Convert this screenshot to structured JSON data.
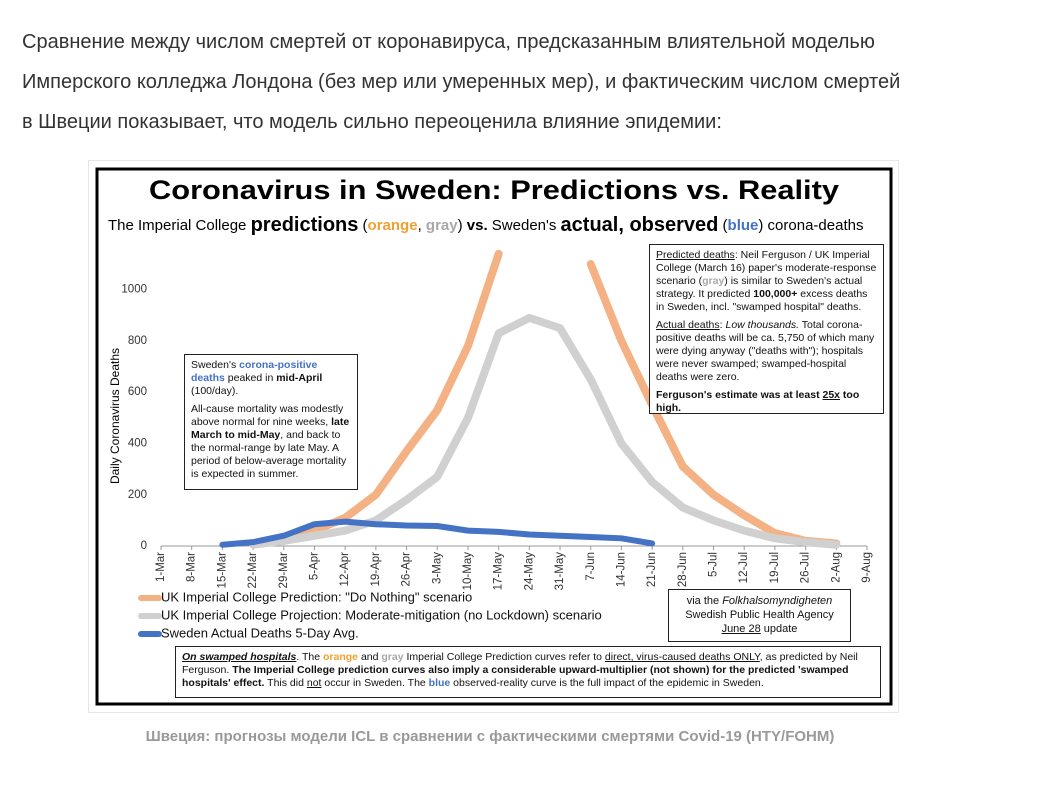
{
  "article": {
    "paragraph_lines": [
      "Сравнение между числом смертей от коронавируса, предсказанным влиятельной моделью",
      "Имперского колледжа Лондона (без мер или умеренных мер), и фактическим числом смертей",
      "в Швеции показывает, что модель сильно переоценила влияние эпидемии:"
    ],
    "caption": "Швеция: прогнозы модели ICL в сравнении с фактическими смертями Covid-19 (HTY/FOHM)"
  },
  "chart_data": {
    "type": "line",
    "title": "Coronavirus in Sweden: Predictions vs. Reality",
    "subtitle": [
      "The Imperial College ",
      "predictions",
      " (",
      "orange",
      ", ",
      "gray",
      ") ",
      "vs.",
      " Sweden's ",
      "actual, observed",
      " (",
      "blue",
      ") corona-deaths"
    ],
    "y_label": "Daily  Coronavirus Deaths",
    "categories": [
      "1-Mar",
      "8-Mar",
      "15-Mar",
      "22-Mar",
      "29-Mar",
      "5-Apr",
      "12-Apr",
      "19-Apr",
      "26-Apr",
      "3-May",
      "10-May",
      "17-May",
      "24-May",
      "31-May",
      "7-Jun",
      "14-Jun",
      "21-Jun",
      "28-Jun",
      "5-Jul",
      "12-Jul",
      "19-Jul",
      "26-Jul",
      "2-Aug",
      "9-Aug"
    ],
    "series": [
      {
        "name": "UK Imperial College Prediction: \"Do Nothing\" scenario",
        "color": "#f4b183",
        "values": [
          null,
          null,
          null,
          null,
          20,
          60,
          110,
          200,
          370,
          530,
          780,
          1140,
          null,
          null,
          1100,
          800,
          550,
          310,
          200,
          120,
          50,
          20,
          10,
          null
        ]
      },
      {
        "name": "UK Imperial College Projection: Moderate-mitigation (no Lockdown) scenario",
        "color": "#d0d0d0",
        "values": [
          null,
          null,
          null,
          5,
          20,
          40,
          60,
          100,
          180,
          270,
          500,
          830,
          890,
          850,
          650,
          400,
          250,
          150,
          100,
          60,
          30,
          15,
          5,
          null
        ]
      },
      {
        "name": "Sweden Actual Deaths 5-Day Avg.",
        "color": "#4472c4",
        "values": [
          null,
          null,
          5,
          15,
          40,
          85,
          95,
          85,
          80,
          78,
          60,
          55,
          45,
          40,
          35,
          30,
          10,
          null,
          null,
          null,
          null,
          null,
          null,
          null
        ]
      }
    ],
    "ylim": [
      0,
      1190
    ],
    "yticks": [
      0,
      200,
      400,
      600,
      800,
      1000
    ],
    "grid": false,
    "left_note": {
      "p1": [
        "Sweden's ",
        "corona-positive deaths",
        " peaked in ",
        "mid-April",
        " (100/day)."
      ],
      "p2": [
        "All-cause mortality was modestly above normal for nine weeks, ",
        "late March to mid-May",
        ", and back to the normal-range by late May. A period of below-average mortality is expected in summer."
      ]
    },
    "right_note": {
      "p1": [
        "Predicted deaths",
        ": Neil Ferguson / UK Imperial College (March 16) paper's moderate-response scenario (",
        "gray",
        ") is similar to Sweden's actual strategy. It predicted ",
        "100,000+",
        " excess deaths in Sweden, incl. \"swamped hospital\" deaths."
      ],
      "p2": [
        "Actual deaths",
        ": ",
        "Low thousands.",
        " Total corona-positive deaths will be ca. 5,750 of which many were dying anyway (\"deaths with\"); hospitals were never swamped; swamped-hospital deaths were zero."
      ],
      "p3": [
        "Ferguson's estimate was at least ",
        "25x",
        " too high."
      ]
    },
    "source_note": {
      "line1": [
        "via the ",
        "Folkhalsomyndigheten"
      ],
      "line2": "Swedish Public Health Agency",
      "line3": [
        "June 28",
        " update"
      ]
    },
    "bottom_note": [
      "On swamped hospitals",
      ". The ",
      "orange",
      " and ",
      "gray",
      " Imperial College Prediction curves refer to ",
      "direct, virus-caused deaths ONLY",
      ", as predicted by Neil Ferguson. ",
      "The Imperial College prediction curves also imply a considerable upward-multiplier (not shown) for the predicted 'swamped hospitals' effect.",
      " This did ",
      "not",
      " occur in Sweden. The ",
      "blue",
      " observed-reality curve is the full impact of the epidemic in Sweden."
    ]
  }
}
